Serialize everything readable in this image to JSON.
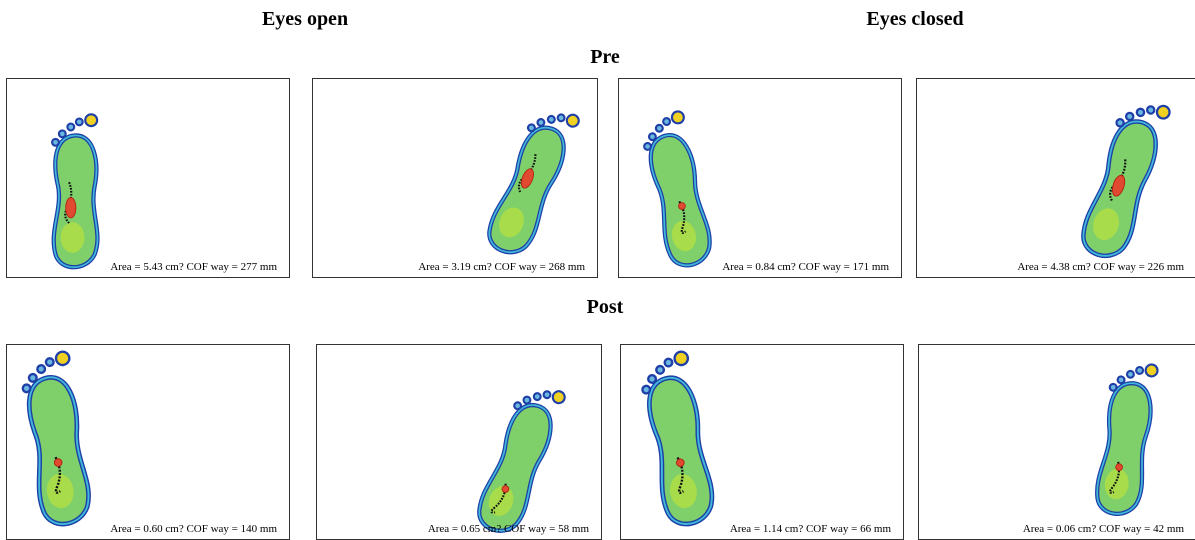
{
  "headers": {
    "left": "Eyes open",
    "right": "Eyes closed"
  },
  "rows": [
    {
      "label": "Pre",
      "panels": [
        {
          "caption": "Area = 5.43 cm? COF way = 277 mm"
        },
        {
          "caption": "Area = 3.19 cm? COF way = 268 mm"
        },
        {
          "caption": "Area = 0.84 cm? COF way = 171 mm"
        },
        {
          "caption": "Area = 4.38 cm? COF way = 226 mm"
        }
      ]
    },
    {
      "label": "Post",
      "panels": [
        {
          "caption": "Area = 0.60 cm? COF way = 140 mm"
        },
        {
          "caption": "Area = 0.65 cm? COF way = 58 mm"
        },
        {
          "caption": "Area = 1.14 cm? COF way = 66 mm"
        },
        {
          "caption": "Area = 0.06 cm? COF way = 42 mm"
        }
      ]
    }
  ]
}
